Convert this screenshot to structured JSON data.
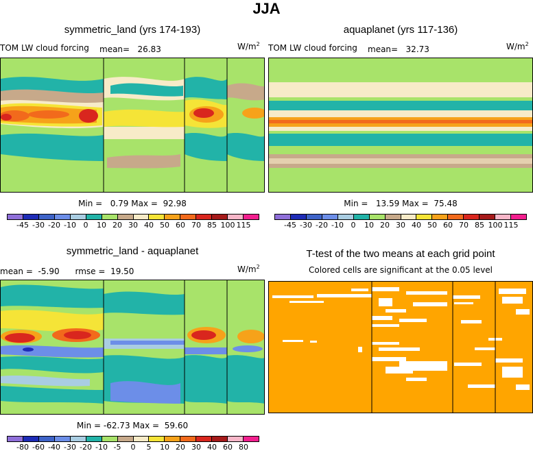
{
  "title": "JJA",
  "colors": {
    "lw_palette": [
      "#8f6fd9",
      "#1e2cb7",
      "#3e63c8",
      "#6c8ee8",
      "#a9cde2",
      "#22b3a8",
      "#a8e36a",
      "#c7a98a",
      "#f7ebc8",
      "#f5e437",
      "#f6a21a",
      "#f26a1c",
      "#d9261e",
      "#a61a1a",
      "#f7b6c8",
      "#f21f8e"
    ],
    "diff_palette": [
      "#8f6fd9",
      "#1e2cb7",
      "#3e63c8",
      "#6c8ee8",
      "#a9cde2",
      "#22b3a8",
      "#a8e36a",
      "#c7a98a",
      "#f7ebc8",
      "#f5e437",
      "#f6a21a",
      "#f26a1c",
      "#d9261e",
      "#a61a1a",
      "#f7b6c8",
      "#f21f8e"
    ],
    "ttest_fill": "#ffa500"
  },
  "panels": {
    "p1": {
      "title": "symmetric_land (yrs 174-193)",
      "left_label": "TOM LW cloud forcing",
      "mean_label": "mean=",
      "mean_value": "26.83",
      "units": "W/m",
      "units_exp": "2",
      "min_label": "Min =",
      "min_value": "0.79",
      "max_label": "Max =",
      "max_value": "92.98"
    },
    "p2": {
      "title": "aquaplanet (yrs 117-136)",
      "left_label": "TOM LW cloud forcing",
      "mean_label": "mean=",
      "mean_value": "32.73",
      "units": "W/m",
      "units_exp": "2",
      "min_label": "Min =",
      "min_value": "13.59",
      "max_label": "Max =",
      "max_value": "75.48"
    },
    "p3": {
      "title": "symmetric_land - aquaplanet",
      "mean_label": "mean =",
      "mean_value": "-5.90",
      "rmse_label": "rmse =",
      "rmse_value": "19.50",
      "units": "W/m",
      "units_exp": "2",
      "min_label": "Min =",
      "min_value": "-62.73",
      "max_label": "Max =",
      "max_value": "59.60"
    },
    "p4": {
      "title": "T-test of the two means at each grid point",
      "subtitle": "Colored cells are significant at the 0.05 level"
    }
  },
  "chart_data": [
    {
      "type": "heatmap",
      "title": "symmetric_land (yrs 174-193)",
      "variable": "TOM LW cloud forcing",
      "units": "W/m2",
      "mean": 26.83,
      "min": 0.79,
      "max": 92.98,
      "colorbar_levels": [
        "-45",
        "-30",
        "-20",
        "-10",
        "0",
        "10",
        "20",
        "30",
        "40",
        "50",
        "60",
        "70",
        "85",
        "100",
        "115"
      ]
    },
    {
      "type": "heatmap",
      "title": "aquaplanet (yrs 117-136)",
      "variable": "TOM LW cloud forcing",
      "units": "W/m2",
      "mean": 32.73,
      "min": 13.59,
      "max": 75.48,
      "colorbar_levels": [
        "-45",
        "-30",
        "-20",
        "-10",
        "0",
        "10",
        "20",
        "30",
        "40",
        "50",
        "60",
        "70",
        "85",
        "100",
        "115"
      ]
    },
    {
      "type": "heatmap",
      "title": "symmetric_land - aquaplanet",
      "units": "W/m2",
      "mean": -5.9,
      "rmse": 19.5,
      "min": -62.73,
      "max": 59.6,
      "colorbar_levels": [
        "-80",
        "-60",
        "-40",
        "-30",
        "-20",
        "-10",
        "-5",
        "0",
        "5",
        "10",
        "20",
        "30",
        "40",
        "60",
        "80"
      ]
    },
    {
      "type": "heatmap",
      "title": "T-test of the two means at each grid point",
      "subtitle": "Colored cells are significant at the 0.05 level"
    }
  ]
}
